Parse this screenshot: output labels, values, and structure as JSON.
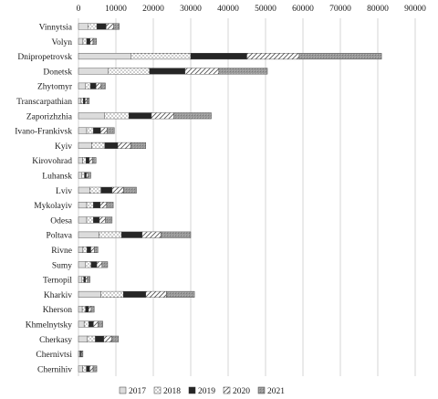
{
  "chart_data": {
    "type": "bar",
    "orientation": "horizontal",
    "stacked": true,
    "xlim": [
      0,
      90000
    ],
    "x_ticks": [
      "0",
      "10000",
      "20000",
      "30000",
      "40000",
      "50000",
      "60000",
      "70000",
      "80000",
      "90000"
    ],
    "categories": [
      "Vinnytsia",
      "Volyn",
      "Dnipropetrovsk",
      "Donetsk",
      "Zhytomyr",
      "Transcarpathian",
      "Zaporizhzhia",
      "Ivano-Frankivsk",
      "Kyiv",
      "Kirovohrad",
      "Luhansk",
      "Lviv",
      "Mykolayiv",
      "Odesa",
      "Poltava",
      "Rivne",
      "Sumy",
      "Ternopil",
      "Kharkiv",
      "Kherson",
      "Khmelnytsky",
      "Cherkasy",
      "Chernivtsi",
      "Chernihiv"
    ],
    "series": [
      {
        "name": "2017",
        "pattern": "light-gray",
        "values": [
          2500,
          1200,
          14000,
          8000,
          1800,
          700,
          7000,
          2200,
          3500,
          1100,
          900,
          3000,
          2200,
          2200,
          5500,
          1200,
          1800,
          800,
          6000,
          1000,
          1500,
          2300,
          300,
          1100
        ]
      },
      {
        "name": "2018",
        "pattern": "dots",
        "values": [
          2400,
          1000,
          16000,
          11000,
          1400,
          600,
          6500,
          1800,
          3500,
          900,
          700,
          3000,
          1800,
          1800,
          6000,
          1100,
          1600,
          600,
          6000,
          900,
          1300,
          2200,
          200,
          1000
        ]
      },
      {
        "name": "2019",
        "pattern": "black",
        "values": [
          2500,
          900,
          15000,
          9500,
          1500,
          500,
          6000,
          1900,
          3500,
          900,
          500,
          3000,
          1800,
          1600,
          5500,
          1000,
          1500,
          500,
          6000,
          800,
          1200,
          2300,
          200,
          900
        ]
      },
      {
        "name": "2020",
        "pattern": "diagonal",
        "values": [
          2000,
          800,
          14000,
          9000,
          1300,
          500,
          6000,
          1700,
          3500,
          800,
          500,
          3000,
          1700,
          1600,
          5000,
          900,
          1400,
          500,
          5500,
          700,
          1200,
          2100,
          200,
          900
        ]
      },
      {
        "name": "2021",
        "pattern": "dark-gray",
        "values": [
          1500,
          900,
          22000,
          13000,
          1200,
          600,
          10000,
          2000,
          4000,
          1000,
          700,
          3500,
          1800,
          1800,
          8000,
          1000,
          1500,
          700,
          7500,
          800,
          1300,
          1800,
          300,
          1000
        ]
      }
    ],
    "legend_position": "bottom",
    "grid": true
  }
}
